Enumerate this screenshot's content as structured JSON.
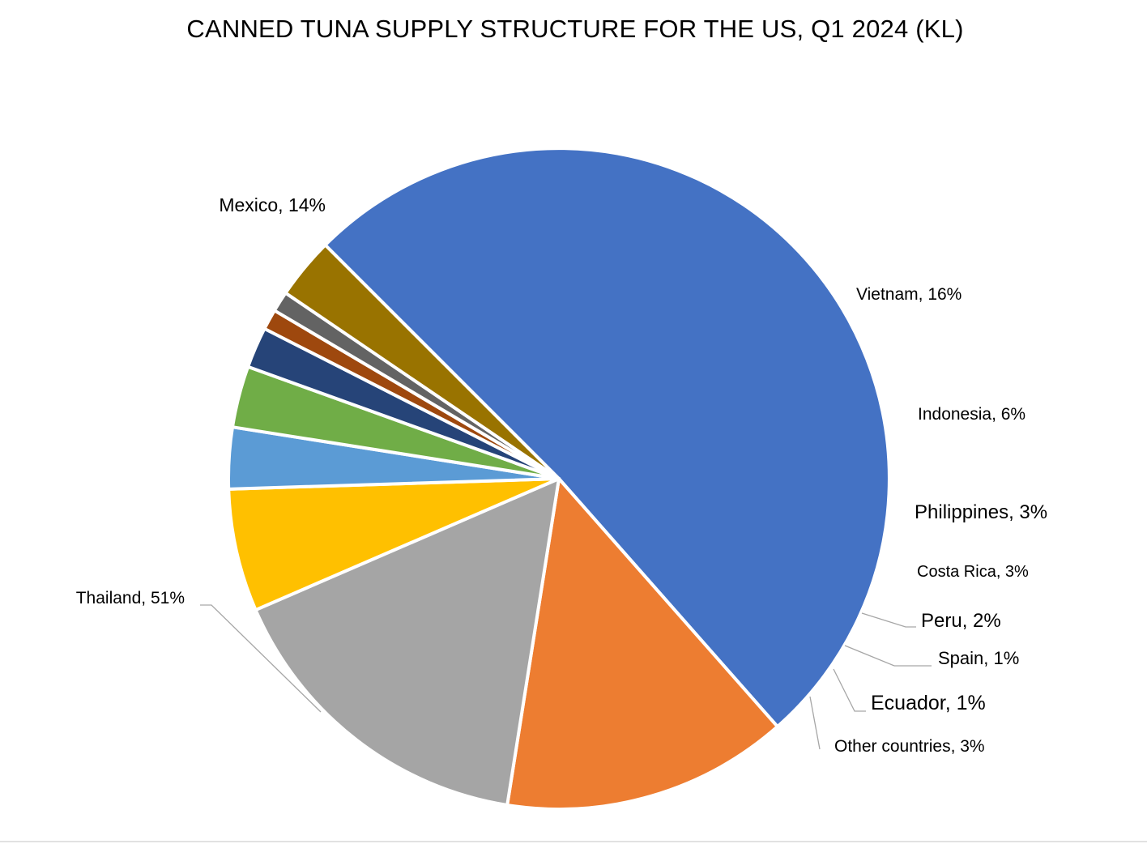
{
  "chart_data": {
    "type": "pie",
    "title": "CANNED TUNA SUPPLY STRUCTURE FOR THE US, Q1 2024 (KL)",
    "start_angle_deg": 135,
    "direction": "clockwise",
    "legend": "none",
    "slices": [
      {
        "label": "Thailand",
        "value": 51,
        "display": "Thailand, 51%",
        "color": "#4472C4"
      },
      {
        "label": "Mexico",
        "value": 14,
        "display": "Mexico, 14%",
        "color": "#ED7D31"
      },
      {
        "label": "Vietnam",
        "value": 16,
        "display": "Vietnam, 16%",
        "color": "#A5A5A5"
      },
      {
        "label": "Indonesia",
        "value": 6,
        "display": "Indonesia, 6%",
        "color": "#FFC000"
      },
      {
        "label": "Philippines",
        "value": 3,
        "display": "Philippines, 3%",
        "color": "#5B9BD5"
      },
      {
        "label": "Costa Rica",
        "value": 3,
        "display": "Costa Rica, 3%",
        "color": "#70AD47"
      },
      {
        "label": "Peru",
        "value": 2,
        "display": "Peru, 2%",
        "color": "#264478"
      },
      {
        "label": "Spain",
        "value": 1,
        "display": "Spain, 1%",
        "color": "#9E480E"
      },
      {
        "label": "Ecuador",
        "value": 1,
        "display": "Ecuador, 1%",
        "color": "#636363"
      },
      {
        "label": "Other countries",
        "value": 3,
        "display": "Other countries, 3%",
        "color": "#997300"
      }
    ]
  }
}
